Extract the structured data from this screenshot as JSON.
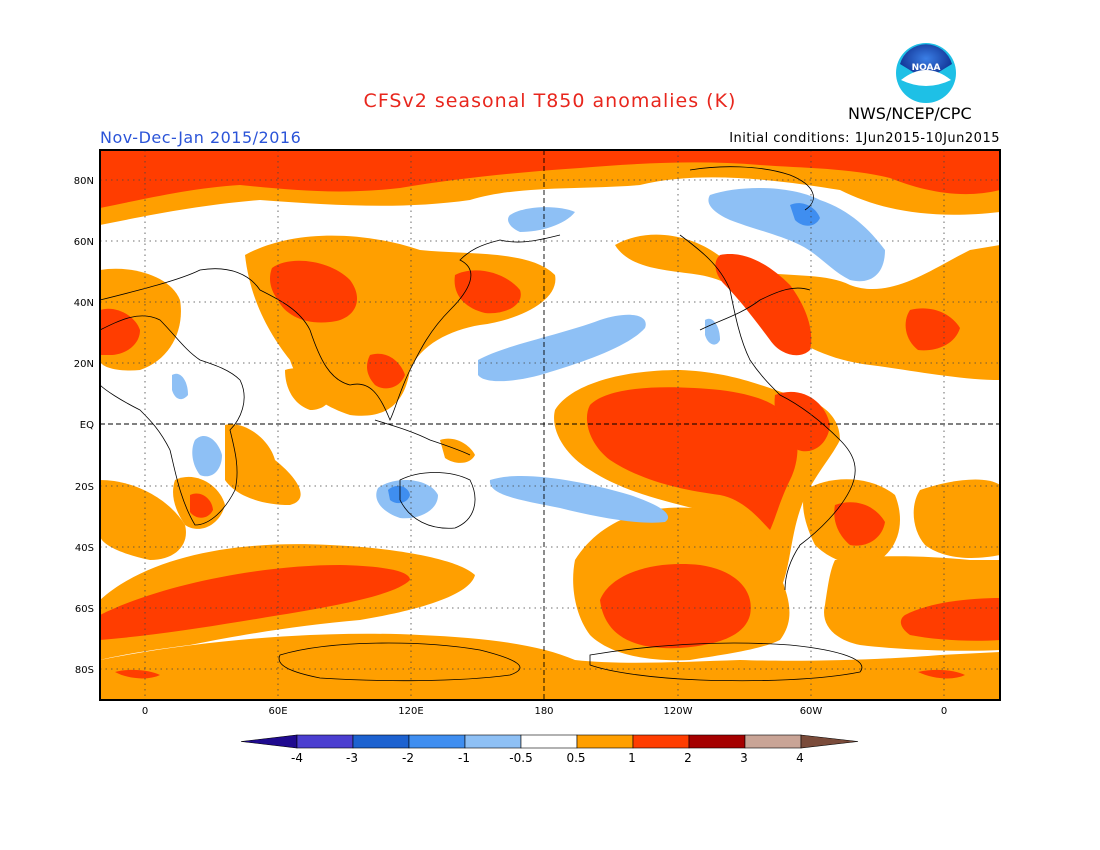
{
  "header": {
    "title": "CFSv2 seasonal T850 anomalies (K)",
    "period": "Nov-Dec-Jan 2015/2016",
    "initial_conditions": "Initial conditions: 1Jun2015-10Jun2015",
    "agency": "NWS/NCEP/CPC",
    "logo_text": "NOAA"
  },
  "axes": {
    "lat_labels": [
      "80N",
      "60N",
      "40N",
      "20N",
      "EQ",
      "20S",
      "40S",
      "60S",
      "80S"
    ],
    "lon_labels": [
      "0",
      "60E",
      "120E",
      "180",
      "120W",
      "60W",
      "0"
    ]
  },
  "colorbar": {
    "labels": [
      "-4",
      "-3",
      "-2",
      "-1",
      "-0.5",
      "0.5",
      "1",
      "2",
      "3",
      "4"
    ],
    "colors": [
      "#1f0a8f",
      "#4b3ed0",
      "#1d62d0",
      "#3f8ef0",
      "#8ec0f5",
      "#ffffff",
      "#ff9f00",
      "#ff3d00",
      "#a50000",
      "#c9a496",
      "#7a4b3a"
    ]
  },
  "legend": {
    "scale": "T850 anomaly (K)",
    "categories": [
      {
        "range": "-1 to -0.5",
        "color": "#8ec0f5"
      },
      {
        "range": "-2 to -1",
        "color": "#3f8ef0"
      },
      {
        "range": "0.5 to 1",
        "color": "#ff9f00"
      },
      {
        "range": "1 to 2",
        "color": "#ff3d00"
      }
    ]
  }
}
